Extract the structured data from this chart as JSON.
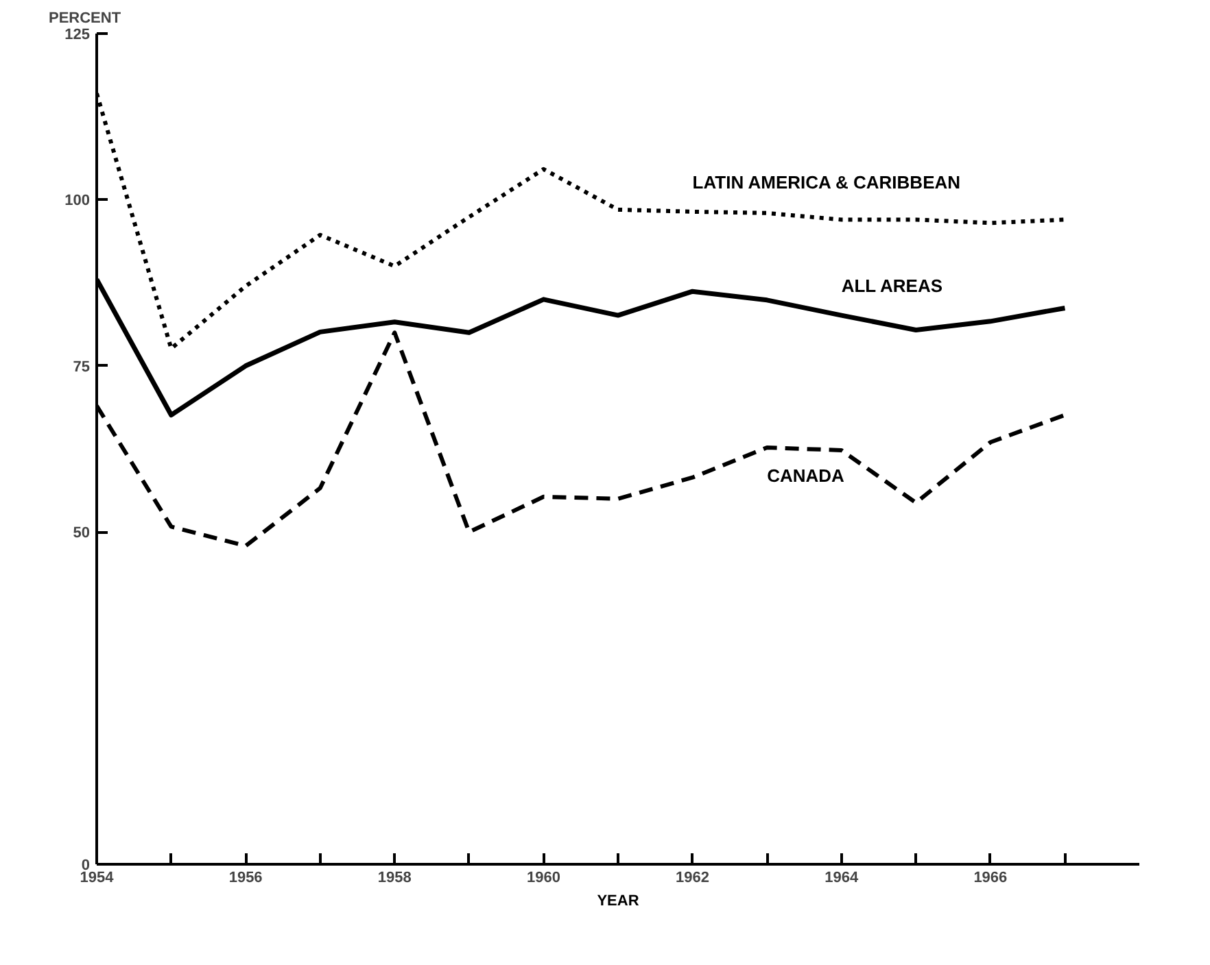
{
  "chart_data": {
    "type": "line",
    "ylabel": "PERCENT",
    "xlabel": "YEAR",
    "x": [
      1954,
      1955,
      1956,
      1957,
      1958,
      1959,
      1960,
      1961,
      1962,
      1963,
      1964,
      1965,
      1966,
      1967
    ],
    "series": [
      {
        "name": "LATIN AMERICA & CARIBBEAN",
        "color": "#000000",
        "line_style": "dotted",
        "values": [
          116,
          77.6,
          87,
          94.7,
          90,
          97.4,
          104.6,
          98.5,
          98.2,
          98,
          97,
          97,
          96.5,
          97
        ]
      },
      {
        "name": "ALL AREAS",
        "color": "#000000",
        "line_style": "solid",
        "values": [
          88,
          67.6,
          75,
          80.1,
          81.6,
          80,
          85,
          82.6,
          86.2,
          84.9,
          82.6,
          80.4,
          81.7,
          83.7
        ]
      },
      {
        "name": "CANADA",
        "color": "#000000",
        "line_style": "dashed",
        "values": [
          69,
          50.8,
          47.9,
          56.6,
          80,
          50,
          55.3,
          55,
          58.2,
          62.7,
          62.3,
          54.4,
          63.5,
          67.6
        ]
      }
    ],
    "xlim": [
      1954,
      1968
    ],
    "xticks": [
      1954,
      {
        "value": 1955,
        "label": null
      },
      1956,
      {
        "value": 1957,
        "label": null
      },
      1958,
      {
        "value": 1959,
        "label": null
      },
      1960,
      {
        "value": 1961,
        "label": null
      },
      1962,
      {
        "value": 1963,
        "label": null
      },
      1964,
      {
        "value": 1965,
        "label": null
      },
      1966,
      {
        "value": 1967,
        "label": null
      }
    ],
    "ylim": [
      0,
      125
    ],
    "yticks": [
      0,
      50,
      75,
      100,
      125
    ],
    "grid": false,
    "marker": "none"
  }
}
